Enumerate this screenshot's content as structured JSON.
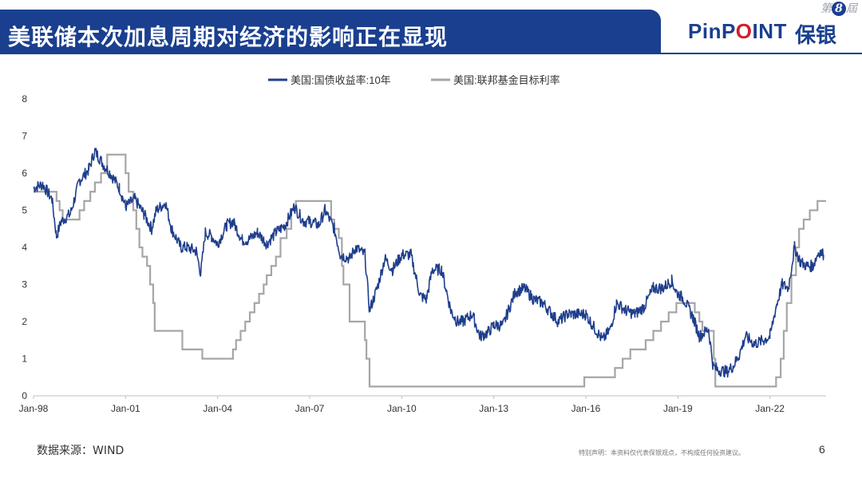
{
  "header": {
    "title": "美联储本次加息周期对经济的影响正在显现",
    "logo_prefix": "PinP",
    "logo_o": "O",
    "logo_suffix": "INT",
    "logo_cn": "保银",
    "page_badge_prefix": "第",
    "page_badge_number": "8",
    "page_badge_suffix": "屆"
  },
  "footer": {
    "source": "数据来源：WIND",
    "disclaimer": "特别声明：本资料仅代表保银观点，不构成任何投资建议。",
    "page_number": "6"
  },
  "colors": {
    "brand_blue": "#1a3f8f",
    "accent_red": "#d0202b",
    "series_treasury": "#1f3e8c",
    "series_fed": "#a6a6a6"
  },
  "chart_data": {
    "type": "line",
    "title": "",
    "xlabel": "",
    "ylabel": "",
    "xlim": [
      1998.0,
      2023.83
    ],
    "ylim": [
      0,
      8
    ],
    "y_ticks": [
      "0",
      "1",
      "2",
      "3",
      "4",
      "5",
      "6",
      "7",
      "8"
    ],
    "x_ticks": [
      {
        "label": "Jan-98",
        "x": 1998.0
      },
      {
        "label": "Jan-01",
        "x": 2001.0
      },
      {
        "label": "Jan-04",
        "x": 2004.0
      },
      {
        "label": "Jan-07",
        "x": 2007.0
      },
      {
        "label": "Jan-10",
        "x": 2010.0
      },
      {
        "label": "Jan-13",
        "x": 2013.0
      },
      {
        "label": "Jan-16",
        "x": 2016.0
      },
      {
        "label": "Jan-19",
        "x": 2019.0
      },
      {
        "label": "Jan-22",
        "x": 2022.0
      }
    ],
    "legend_position": "top-center",
    "series": [
      {
        "name": "美国:国债收益率:10年",
        "style": "line",
        "x": [
          1998.0,
          1998.3,
          1998.6,
          1998.75,
          1998.9,
          1999.2,
          1999.5,
          1999.8,
          2000.0,
          2000.15,
          2000.3,
          2000.5,
          2000.8,
          2001.0,
          2001.3,
          2001.6,
          2001.85,
          2002.0,
          2002.3,
          2002.5,
          2002.8,
          2003.0,
          2003.3,
          2003.45,
          2003.6,
          2003.8,
          2004.0,
          2004.3,
          2004.5,
          2004.8,
          2005.0,
          2005.3,
          2005.6,
          2005.9,
          2006.2,
          2006.5,
          2006.8,
          2007.0,
          2007.3,
          2007.5,
          2007.8,
          2008.0,
          2008.3,
          2008.5,
          2008.8,
          2008.95,
          2009.2,
          2009.45,
          2009.7,
          2010.0,
          2010.3,
          2010.6,
          2010.8,
          2011.0,
          2011.3,
          2011.6,
          2011.8,
          2012.0,
          2012.3,
          2012.55,
          2012.8,
          2013.0,
          2013.3,
          2013.7,
          2014.0,
          2014.3,
          2014.6,
          2014.9,
          2015.1,
          2015.4,
          2015.7,
          2016.0,
          2016.3,
          2016.55,
          2016.8,
          2017.0,
          2017.3,
          2017.6,
          2017.9,
          2018.2,
          2018.5,
          2018.8,
          2018.95,
          2019.2,
          2019.5,
          2019.7,
          2020.0,
          2020.15,
          2020.3,
          2020.6,
          2020.8,
          2021.0,
          2021.2,
          2021.5,
          2021.8,
          2022.0,
          2022.2,
          2022.4,
          2022.6,
          2022.8,
          2023.0,
          2023.2,
          2023.4,
          2023.6,
          2023.75
        ],
        "values": [
          5.6,
          5.7,
          5.3,
          4.3,
          4.7,
          4.9,
          5.8,
          6.1,
          6.6,
          6.4,
          6.2,
          6.0,
          5.6,
          5.1,
          5.3,
          4.9,
          4.5,
          5.0,
          5.2,
          4.5,
          4.0,
          4.0,
          3.9,
          3.3,
          4.4,
          4.3,
          4.1,
          4.6,
          4.7,
          4.2,
          4.2,
          4.4,
          4.1,
          4.4,
          4.6,
          5.1,
          4.7,
          4.7,
          4.6,
          5.0,
          4.5,
          3.8,
          3.7,
          4.0,
          3.8,
          2.3,
          2.9,
          3.7,
          3.4,
          3.8,
          3.8,
          2.7,
          2.6,
          3.4,
          3.4,
          2.3,
          2.0,
          2.0,
          2.2,
          1.6,
          1.7,
          1.9,
          1.9,
          2.8,
          2.9,
          2.6,
          2.5,
          2.2,
          2.0,
          2.2,
          2.2,
          2.2,
          1.8,
          1.5,
          1.8,
          2.5,
          2.3,
          2.2,
          2.4,
          2.9,
          2.9,
          3.1,
          2.8,
          2.6,
          2.1,
          1.6,
          1.8,
          0.8,
          0.7,
          0.65,
          0.8,
          1.1,
          1.6,
          1.4,
          1.5,
          1.6,
          2.4,
          3.0,
          2.9,
          4.0,
          3.6,
          3.5,
          3.5,
          3.9,
          3.8
        ]
      },
      {
        "name": "美国:联邦基金目标利率",
        "style": "step",
        "x": [
          1998.0,
          1998.75,
          1998.85,
          1998.95,
          1999.5,
          1999.65,
          1999.85,
          2000.0,
          2000.2,
          2000.4,
          2001.0,
          2001.1,
          2001.25,
          2001.35,
          2001.45,
          2001.55,
          2001.7,
          2001.8,
          2001.9,
          2001.95,
          2002.85,
          2003.5,
          2004.5,
          2004.6,
          2004.75,
          2004.9,
          2005.05,
          2005.2,
          2005.35,
          2005.5,
          2005.6,
          2005.75,
          2005.9,
          2006.05,
          2006.25,
          2006.4,
          2006.55,
          2007.7,
          2007.8,
          2007.95,
          2008.05,
          2008.1,
          2008.3,
          2008.8,
          2008.85,
          2008.95,
          2015.95,
          2016.95,
          2017.2,
          2017.45,
          2017.95,
          2018.2,
          2018.45,
          2018.7,
          2018.95,
          2019.55,
          2019.7,
          2019.8,
          2020.17,
          2020.22,
          2022.2,
          2022.35,
          2022.45,
          2022.55,
          2022.7,
          2022.85,
          2022.95,
          2023.1,
          2023.3,
          2023.55,
          2023.83
        ],
        "values": [
          5.5,
          5.25,
          5.0,
          4.75,
          5.0,
          5.25,
          5.5,
          5.75,
          6.0,
          6.5,
          6.0,
          5.5,
          5.0,
          4.5,
          4.0,
          3.75,
          3.5,
          3.0,
          2.5,
          1.75,
          1.25,
          1.0,
          1.25,
          1.5,
          1.75,
          2.0,
          2.25,
          2.5,
          2.75,
          3.0,
          3.25,
          3.5,
          3.75,
          4.25,
          4.5,
          5.0,
          5.25,
          4.75,
          4.5,
          4.25,
          3.5,
          3.0,
          2.0,
          1.5,
          1.0,
          0.25,
          0.5,
          0.75,
          1.0,
          1.25,
          1.5,
          1.75,
          2.0,
          2.25,
          2.5,
          2.25,
          2.0,
          1.75,
          1.0,
          0.25,
          0.5,
          1.0,
          1.75,
          2.5,
          3.25,
          4.0,
          4.5,
          4.75,
          5.0,
          5.25,
          5.25
        ]
      }
    ]
  }
}
